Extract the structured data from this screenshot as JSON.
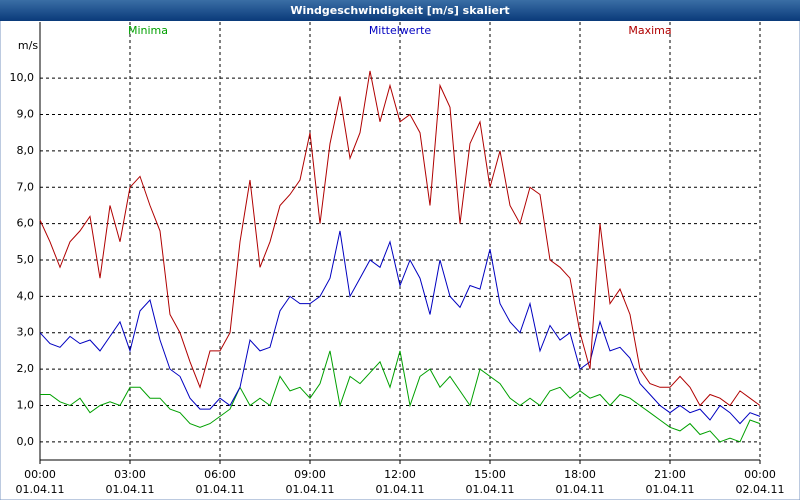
{
  "chart_data": {
    "type": "line",
    "title": "Windgeschwindigkeit [m/s] skaliert",
    "y_label": "m/s",
    "grid": true,
    "xlim": [
      "01.04.11 00:00",
      "02.04.11 00:00"
    ],
    "ylim": [
      -0.5,
      11.05
    ],
    "xticks": [
      {
        "value": "01.04.11 00:00",
        "label": [
          "00:00",
          "01.04.11"
        ]
      },
      {
        "value": "01.04.11 03:00",
        "label": [
          "03:00",
          "01.04.11"
        ]
      },
      {
        "value": "01.04.11 06:00",
        "label": [
          "06:00",
          "01.04.11"
        ]
      },
      {
        "value": "01.04.11 09:00",
        "label": [
          "09:00",
          "01.04.11"
        ]
      },
      {
        "value": "01.04.11 12:00",
        "label": [
          "12:00",
          "01.04.11"
        ]
      },
      {
        "value": "01.04.11 15:00",
        "label": [
          "15:00",
          "01.04.11"
        ]
      },
      {
        "value": "01.04.11 18:00",
        "label": [
          "18:00",
          "01.04.11"
        ]
      },
      {
        "value": "01.04.11 21:00",
        "label": [
          "21:00",
          "01.04.11"
        ]
      },
      {
        "value": "02.04.11 00:00",
        "label": [
          "00:00",
          "02.04.11"
        ]
      }
    ],
    "yticks": [
      {
        "value": 0,
        "label": "0,0"
      },
      {
        "value": 1,
        "label": "1,0"
      },
      {
        "value": 2,
        "label": "2,0"
      },
      {
        "value": 3,
        "label": "3,0"
      },
      {
        "value": 4,
        "label": "4,0"
      },
      {
        "value": 5,
        "label": "5,0"
      },
      {
        "value": 6,
        "label": "6,0"
      },
      {
        "value": 7,
        "label": "7,0"
      },
      {
        "value": 8,
        "label": "8,0"
      },
      {
        "value": 9,
        "label": "9,0"
      },
      {
        "value": 10,
        "label": "10,0"
      }
    ],
    "x": [
      "01.04.11 00:00",
      "01.04.11 00:20",
      "01.04.11 00:40",
      "01.04.11 01:00",
      "01.04.11 01:20",
      "01.04.11 01:40",
      "01.04.11 02:00",
      "01.04.11 02:20",
      "01.04.11 02:40",
      "01.04.11 03:00",
      "01.04.11 03:20",
      "01.04.11 03:40",
      "01.04.11 04:00",
      "01.04.11 04:20",
      "01.04.11 04:40",
      "01.04.11 05:00",
      "01.04.11 05:20",
      "01.04.11 05:40",
      "01.04.11 06:00",
      "01.04.11 06:20",
      "01.04.11 06:40",
      "01.04.11 07:00",
      "01.04.11 07:20",
      "01.04.11 07:40",
      "01.04.11 08:00",
      "01.04.11 08:20",
      "01.04.11 08:40",
      "01.04.11 09:00",
      "01.04.11 09:20",
      "01.04.11 09:40",
      "01.04.11 10:00",
      "01.04.11 10:20",
      "01.04.11 10:40",
      "01.04.11 11:00",
      "01.04.11 11:20",
      "01.04.11 11:40",
      "01.04.11 12:00",
      "01.04.11 12:20",
      "01.04.11 12:40",
      "01.04.11 13:00",
      "01.04.11 13:20",
      "01.04.11 13:40",
      "01.04.11 14:00",
      "01.04.11 14:20",
      "01.04.11 14:40",
      "01.04.11 15:00",
      "01.04.11 15:20",
      "01.04.11 15:40",
      "01.04.11 16:00",
      "01.04.11 16:20",
      "01.04.11 16:40",
      "01.04.11 17:00",
      "01.04.11 17:20",
      "01.04.11 17:40",
      "01.04.11 18:00",
      "01.04.11 18:20",
      "01.04.11 18:40",
      "01.04.11 19:00",
      "01.04.11 19:20",
      "01.04.11 19:40",
      "01.04.11 20:00",
      "01.04.11 20:20",
      "01.04.11 20:40",
      "01.04.11 21:00",
      "01.04.11 21:20",
      "01.04.11 21:40",
      "01.04.11 22:00",
      "01.04.11 22:20",
      "01.04.11 22:40",
      "01.04.11 23:00",
      "01.04.11 23:20",
      "01.04.11 23:40",
      "02.04.11 00:00"
    ],
    "series": [
      {
        "name": "Minima",
        "color": "#00a000",
        "values": [
          1.3,
          1.3,
          1.1,
          1.0,
          1.2,
          0.8,
          1.0,
          1.1,
          1.0,
          1.5,
          1.5,
          1.2,
          1.2,
          0.9,
          0.8,
          0.5,
          0.4,
          0.5,
          0.7,
          0.9,
          1.5,
          1.0,
          1.2,
          1.0,
          1.8,
          1.4,
          1.5,
          1.2,
          1.6,
          2.5,
          1.0,
          1.8,
          1.6,
          1.9,
          2.2,
          1.5,
          2.5,
          1.0,
          1.8,
          2.0,
          1.5,
          1.8,
          1.4,
          1.0,
          2.0,
          1.8,
          1.6,
          1.2,
          1.0,
          1.2,
          1.0,
          1.4,
          1.5,
          1.2,
          1.4,
          1.2,
          1.3,
          1.0,
          1.3,
          1.2,
          1.0,
          0.8,
          0.6,
          0.4,
          0.3,
          0.5,
          0.2,
          0.3,
          0.0,
          0.1,
          0.0,
          0.6,
          0.5
        ]
      },
      {
        "name": "Mittelwerte",
        "color": "#0000c0",
        "values": [
          3.0,
          2.7,
          2.6,
          2.9,
          2.7,
          2.8,
          2.5,
          2.9,
          3.3,
          2.5,
          3.6,
          3.9,
          2.8,
          2.0,
          1.8,
          1.2,
          0.9,
          0.9,
          1.2,
          1.0,
          1.5,
          2.8,
          2.5,
          2.6,
          3.6,
          4.0,
          3.8,
          3.8,
          4.0,
          4.5,
          5.8,
          4.0,
          4.5,
          5.0,
          4.8,
          5.5,
          4.3,
          5.0,
          4.5,
          3.5,
          5.0,
          4.0,
          3.7,
          4.3,
          4.2,
          5.3,
          3.8,
          3.3,
          3.0,
          3.8,
          2.5,
          3.2,
          2.8,
          3.0,
          2.0,
          2.2,
          3.3,
          2.5,
          2.6,
          2.3,
          1.6,
          1.3,
          1.0,
          0.8,
          1.0,
          0.8,
          0.9,
          0.6,
          1.0,
          0.8,
          0.5,
          0.8,
          0.7
        ]
      },
      {
        "name": "Maxima",
        "color": "#b00000",
        "values": [
          6.1,
          5.5,
          4.8,
          5.5,
          5.8,
          6.2,
          4.5,
          6.5,
          5.5,
          7.0,
          7.3,
          6.5,
          5.8,
          3.5,
          3.0,
          2.2,
          1.5,
          2.5,
          2.5,
          3.0,
          5.5,
          7.2,
          4.8,
          5.5,
          6.5,
          6.8,
          7.2,
          8.5,
          6.0,
          8.2,
          9.5,
          7.8,
          8.5,
          10.2,
          8.8,
          9.8,
          8.8,
          9.0,
          8.5,
          6.5,
          9.8,
          9.2,
          6.0,
          8.2,
          8.8,
          7.0,
          8.0,
          6.5,
          6.0,
          7.0,
          6.8,
          5.0,
          4.8,
          4.5,
          3.0,
          2.0,
          6.0,
          3.8,
          4.2,
          3.5,
          2.0,
          1.6,
          1.5,
          1.5,
          1.8,
          1.5,
          1.0,
          1.3,
          1.2,
          1.0,
          1.4,
          1.2,
          1.0
        ]
      }
    ]
  }
}
